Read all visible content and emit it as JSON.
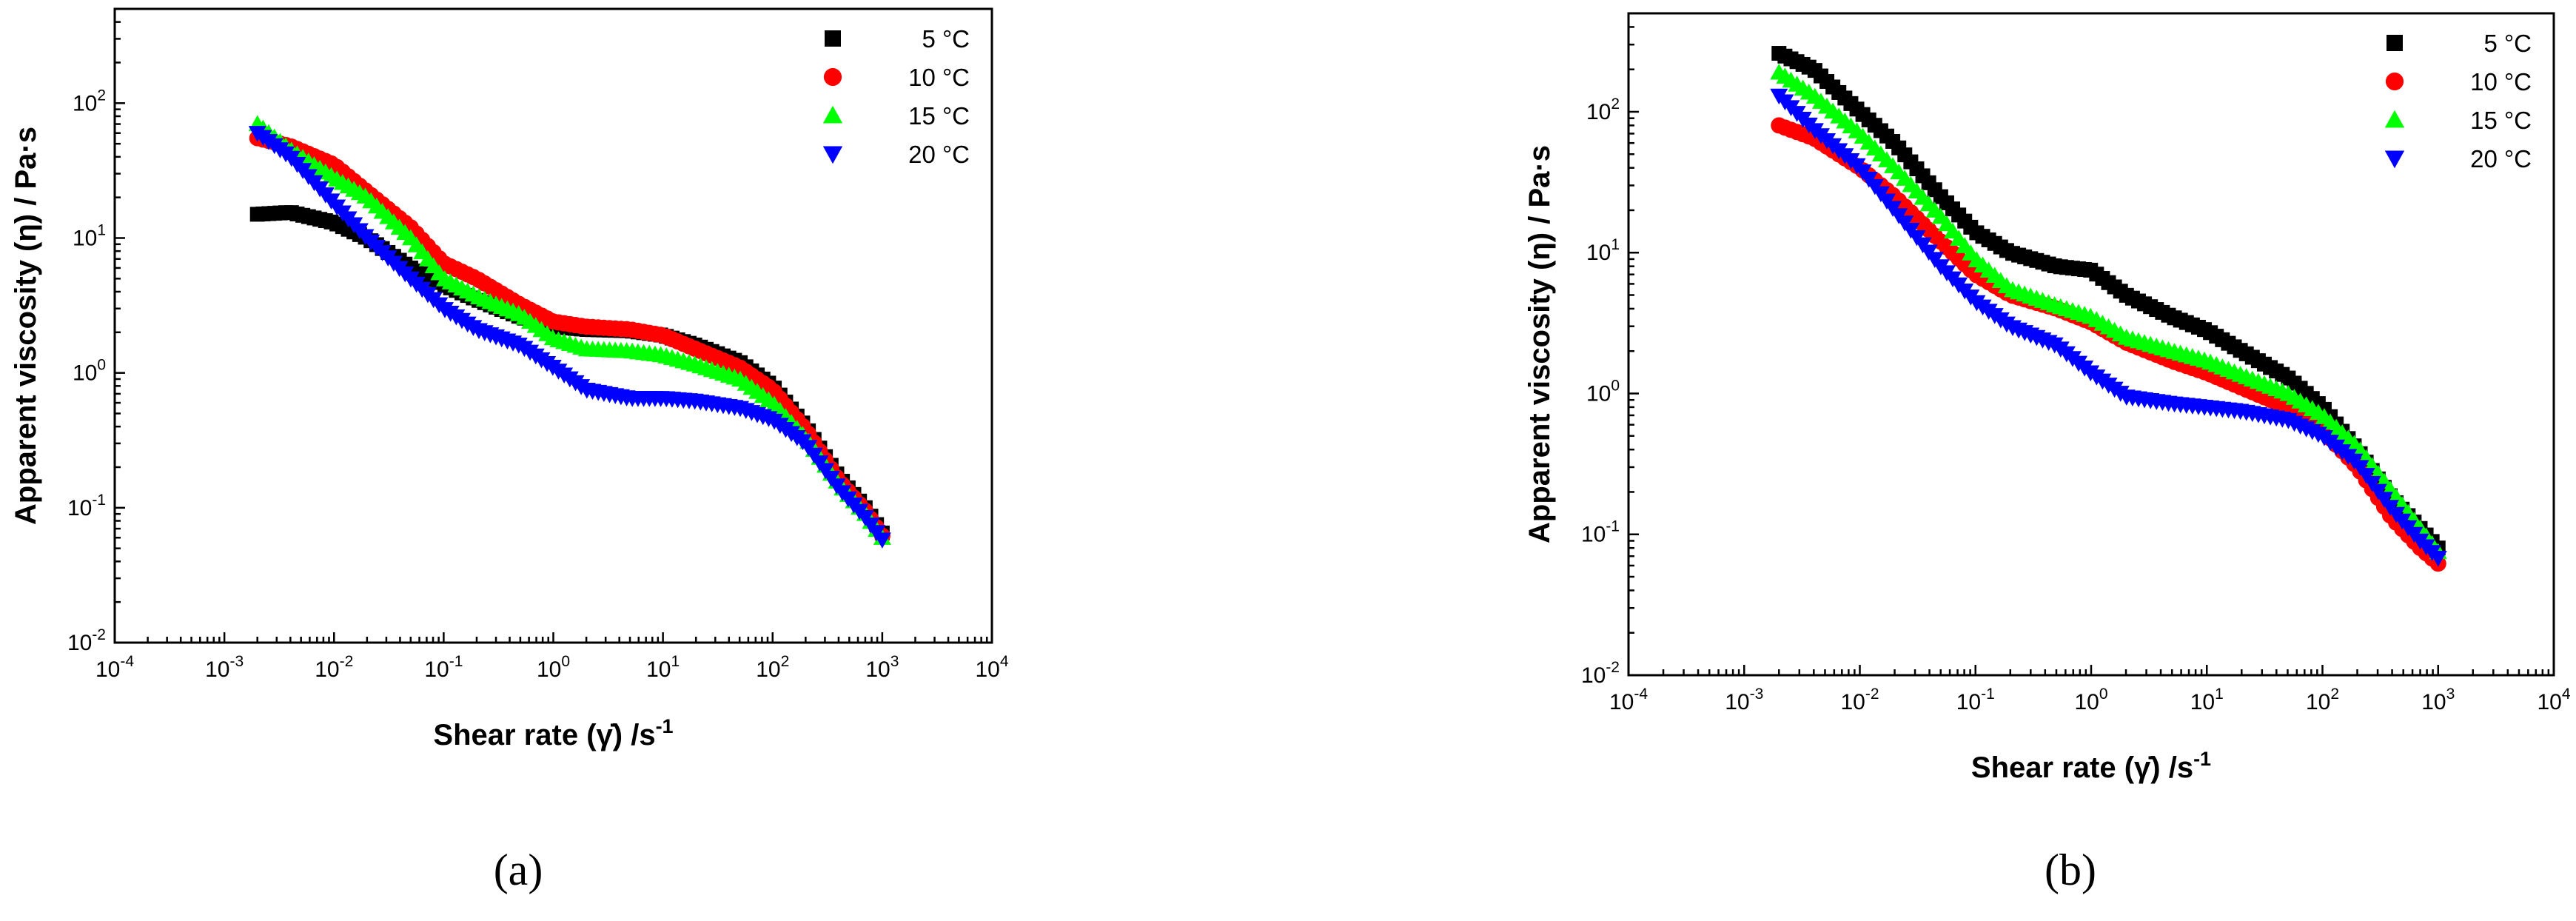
{
  "chart_data": [
    {
      "type": "scatter",
      "panel_label": "(a)",
      "xlabel": "Shear rate (γ̇) /s",
      "xlabel_exp": "-1",
      "ylabel": "Apparent viscosity (η) / Pa·s",
      "x_scale": "log",
      "y_scale": "log",
      "xlim": [
        0.0001,
        10000
      ],
      "ylim": [
        0.01,
        500
      ],
      "x_tick_labels": [
        "10^-4",
        "10^-3",
        "10^-2",
        "10^-1",
        "10^0",
        "10^1",
        "10^2",
        "10^3",
        "10^4"
      ],
      "y_tick_labels": [
        "10^-2",
        "10^-1",
        "10^0",
        "10^1",
        "10^2"
      ],
      "grid": false,
      "legend_position": "top-right",
      "series": [
        {
          "name": "5 °C",
          "marker": "square",
          "color": "#000000",
          "x": [
            0.002,
            0.004,
            0.01,
            0.02,
            0.05,
            0.1,
            0.2,
            0.5,
            1,
            2,
            5,
            10,
            20,
            50,
            100,
            200,
            400,
            700,
            1000
          ],
          "y": [
            15,
            15.5,
            13,
            10,
            6,
            4.5,
            3.5,
            2.6,
            2.2,
            2.1,
            2.05,
            1.9,
            1.6,
            1.2,
            0.8,
            0.4,
            0.17,
            0.1,
            0.065
          ]
        },
        {
          "name": "10 °C",
          "marker": "circle",
          "color": "#ff0000",
          "x": [
            0.002,
            0.004,
            0.01,
            0.02,
            0.05,
            0.1,
            0.2,
            0.5,
            1,
            2,
            5,
            10,
            20,
            50,
            100,
            200,
            400,
            700,
            1000
          ],
          "y": [
            55,
            48,
            35,
            22,
            12,
            6.5,
            5,
            3.2,
            2.4,
            2.2,
            2.1,
            1.9,
            1.5,
            1.1,
            0.75,
            0.38,
            0.16,
            0.095,
            0.062
          ]
        },
        {
          "name": "15 °C",
          "marker": "triangle-up",
          "color": "#00ff00",
          "x": [
            0.002,
            0.004,
            0.01,
            0.02,
            0.05,
            0.1,
            0.2,
            0.5,
            1,
            2,
            5,
            10,
            20,
            50,
            100,
            200,
            400,
            700,
            1000
          ],
          "y": [
            70,
            45,
            28,
            20,
            10,
            5,
            3.7,
            2.7,
            1.8,
            1.5,
            1.45,
            1.35,
            1.15,
            0.9,
            0.6,
            0.33,
            0.15,
            0.09,
            0.06
          ]
        },
        {
          "name": "20 °C",
          "marker": "triangle-down",
          "color": "#0000ff",
          "x": [
            0.002,
            0.004,
            0.01,
            0.02,
            0.05,
            0.1,
            0.2,
            0.5,
            1,
            2,
            5,
            10,
            20,
            50,
            100,
            200,
            400,
            700,
            1000
          ],
          "y": [
            60,
            40,
            18,
            10,
            5,
            3,
            2.1,
            1.6,
            1.1,
            0.75,
            0.65,
            0.65,
            0.62,
            0.55,
            0.45,
            0.3,
            0.14,
            0.085,
            0.058
          ]
        }
      ]
    },
    {
      "type": "scatter",
      "panel_label": "(b)",
      "xlabel": "Shear rate (γ̇) /s",
      "xlabel_exp": "-1",
      "ylabel": "Apparent viscosity (η) / Pa·s",
      "x_scale": "log",
      "y_scale": "log",
      "xlim": [
        0.0001,
        10000
      ],
      "ylim": [
        0.01,
        500
      ],
      "x_tick_labels": [
        "10^-4",
        "10^-3",
        "10^-2",
        "10^-1",
        "10^0",
        "10^1",
        "10^2",
        "10^3",
        "10^4"
      ],
      "y_tick_labels": [
        "10^-2",
        "10^-1",
        "10^0",
        "10^1",
        "10^2"
      ],
      "grid": false,
      "legend_position": "top-right",
      "series": [
        {
          "name": "5 °C",
          "marker": "square",
          "color": "#000000",
          "x": [
            0.002,
            0.004,
            0.01,
            0.02,
            0.05,
            0.1,
            0.2,
            0.5,
            1,
            2,
            5,
            10,
            20,
            50,
            100,
            200,
            400,
            700,
            1000
          ],
          "y": [
            260,
            200,
            100,
            60,
            25,
            14,
            10,
            8,
            7.5,
            5,
            3.5,
            2.8,
            2,
            1.3,
            0.8,
            0.4,
            0.18,
            0.11,
            0.08
          ]
        },
        {
          "name": "10 °C",
          "marker": "circle",
          "color": "#ff0000",
          "x": [
            0.002,
            0.004,
            0.01,
            0.02,
            0.05,
            0.1,
            0.2,
            0.5,
            1,
            2,
            5,
            10,
            20,
            50,
            100,
            200,
            400,
            700,
            1000
          ],
          "y": [
            80,
            65,
            40,
            25,
            12,
            7,
            5,
            4,
            3.2,
            2.3,
            1.7,
            1.4,
            1.1,
            0.8,
            0.55,
            0.3,
            0.13,
            0.08,
            0.062
          ]
        },
        {
          "name": "15 °C",
          "marker": "triangle-up",
          "color": "#00ff00",
          "x": [
            0.002,
            0.004,
            0.01,
            0.02,
            0.05,
            0.1,
            0.2,
            0.5,
            1,
            2,
            5,
            10,
            20,
            50,
            100,
            200,
            400,
            700,
            1000
          ],
          "y": [
            190,
            130,
            70,
            40,
            18,
            9,
            5.5,
            4.2,
            3.5,
            2.5,
            2,
            1.7,
            1.35,
            1,
            0.7,
            0.42,
            0.2,
            0.11,
            0.075
          ]
        },
        {
          "name": "20 °C",
          "marker": "triangle-down",
          "color": "#0000ff",
          "x": [
            0.002,
            0.004,
            0.01,
            0.02,
            0.05,
            0.1,
            0.2,
            0.5,
            1,
            2,
            5,
            10,
            20,
            50,
            100,
            200,
            400,
            700,
            1000
          ],
          "y": [
            130,
            75,
            40,
            20,
            8,
            4.5,
            3,
            2.2,
            1.4,
            0.95,
            0.85,
            0.8,
            0.75,
            0.65,
            0.5,
            0.32,
            0.15,
            0.09,
            0.068
          ]
        }
      ]
    }
  ]
}
